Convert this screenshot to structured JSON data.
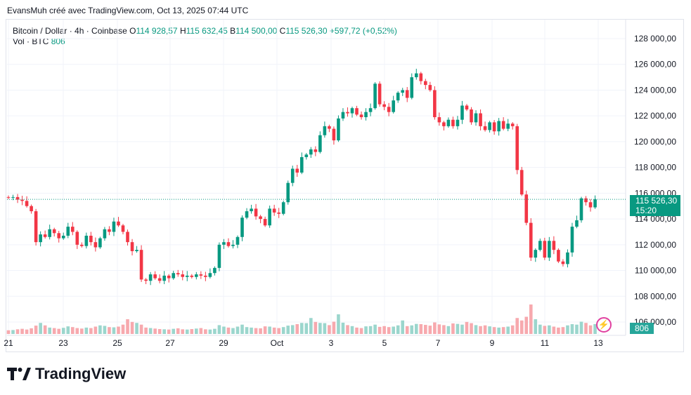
{
  "attribution": "EvansMuh créé avec TradingView.com, Oct 13, 2025 07:44 UTC",
  "legend": {
    "symbol": "Bitcoin / Dollar · 4h · Coinbase",
    "o_label": "O",
    "o_value": "114 928,57",
    "h_label": "H",
    "h_value": "115 632,45",
    "b_label": "B",
    "b_value": "114 500,00",
    "c_label": "C",
    "c_value": "115 526,30",
    "change": "+597,72 (+0,52%)",
    "vol_label": "Vol · BTC",
    "vol_value": "806"
  },
  "price_tag": {
    "price": "115 526,30",
    "countdown": "15:20"
  },
  "volume_tag": "806",
  "brand": "TradingView",
  "colors": {
    "up": "#089981",
    "down": "#f23645",
    "up_vol": "#9bd6cd",
    "down_vol": "#f7a9ae",
    "bolt": "#e040a0"
  },
  "icons": {
    "logo": "tradingview-logo-icon",
    "bolt": "lightning-bolt-icon"
  },
  "chart_data": {
    "type": "candlestick",
    "interval": "4h",
    "ylim": [
      105500,
      129000
    ],
    "y_ticks": [
      "128 000,00",
      "126 000,00",
      "124 000,00",
      "122 000,00",
      "120 000,00",
      "118 000,00",
      "116 000,00",
      "114 000,00",
      "112 000,00",
      "110 000,00",
      "108 000,00",
      "106 000,00"
    ],
    "y_tick_values": [
      128000,
      126000,
      124000,
      122000,
      120000,
      118000,
      116000,
      114000,
      112000,
      110000,
      108000,
      106000
    ],
    "x_ticks": [
      "21",
      "23",
      "25",
      "27",
      "29",
      "Oct",
      "3",
      "5",
      "7",
      "9",
      "11",
      "13"
    ],
    "last_price": 115526.3,
    "closes": [
      115650,
      115700,
      115500,
      115400,
      115000,
      114600,
      112200,
      112800,
      112600,
      113200,
      112900,
      112500,
      112700,
      113400,
      113000,
      112000,
      111900,
      112700,
      112200,
      111800,
      112500,
      113200,
      113000,
      113800,
      113500,
      113000,
      112200,
      111500,
      111600,
      109300,
      109200,
      109700,
      109400,
      109200,
      109600,
      109400,
      109800,
      109700,
      109500,
      109600,
      109500,
      109700,
      109600,
      109500,
      109800,
      110200,
      112000,
      112200,
      111900,
      112000,
      112600,
      114100,
      114600,
      114800,
      114200,
      114000,
      113500,
      114800,
      114500,
      114400,
      115300,
      116800,
      117900,
      117600,
      118800,
      119000,
      119400,
      119200,
      120500,
      121200,
      121000,
      120100,
      121800,
      122300,
      122200,
      122600,
      122100,
      121900,
      122300,
      122600,
      124500,
      122900,
      122700,
      122300,
      123200,
      123800,
      124000,
      123400,
      125000,
      125300,
      124700,
      124400,
      124000,
      121900,
      121500,
      121200,
      121700,
      121200,
      121700,
      122800,
      122500,
      121500,
      122200,
      121200,
      120900,
      121500,
      120800,
      121600,
      121000,
      121400,
      121200,
      117800,
      115900,
      113700,
      111000,
      111600,
      112300,
      111000,
      112300,
      111600,
      110700,
      110500,
      111400,
      113400,
      113900,
      115600,
      115300,
      114900,
      115526.3
    ],
    "volumes": [
      300,
      320,
      380,
      420,
      360,
      460,
      680,
      900,
      700,
      520,
      480,
      420,
      500,
      620,
      560,
      480,
      440,
      520,
      480,
      600,
      700,
      660,
      560,
      540,
      600,
      760,
      1200,
      980,
      900,
      760,
      520,
      480,
      440,
      400,
      380,
      360,
      420,
      460,
      380,
      360,
      400,
      440,
      480,
      380,
      360,
      420,
      720,
      600,
      520,
      480,
      600,
      760,
      560,
      520,
      480,
      460,
      620,
      600,
      520,
      480,
      560,
      680,
      720,
      800,
      900,
      880,
      1300,
      980,
      900,
      880,
      720,
      1000,
      1600,
      920,
      720,
      640,
      520,
      480,
      620,
      640,
      760,
      580,
      640,
      560,
      600,
      700,
      1100,
      640,
      700,
      820,
      800,
      740,
      680,
      940,
      780,
      720,
      640,
      860,
      820,
      760,
      980,
      880,
      720,
      640,
      700,
      620,
      560,
      520,
      560,
      600,
      700,
      1300,
      1100,
      1400,
      2400,
      1200,
      760,
      660,
      700,
      600,
      520,
      560,
      700,
      800,
      760,
      1000,
      900,
      700,
      806
    ]
  }
}
